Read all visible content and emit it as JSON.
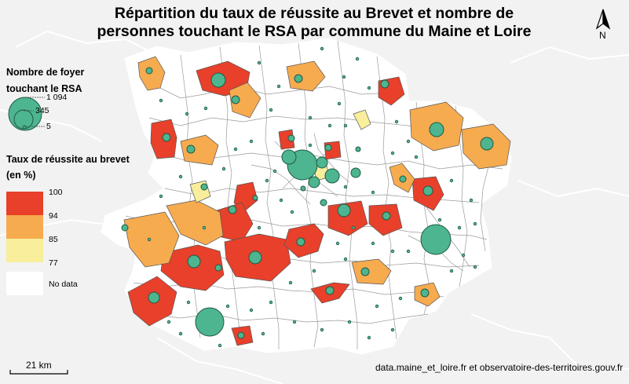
{
  "title": {
    "line1": "Répartition du taux de réussite au Brevet et nombre de",
    "line2": "personnes touchant le RSA par commune du Maine et Loire"
  },
  "legend_size": {
    "title_line1": "Nombre de foyer",
    "title_line2": "touchant le RSA",
    "values": [
      "1 094",
      "345",
      "5"
    ]
  },
  "legend_color": {
    "title_line1": "Taux de réussite au brevet",
    "title_line2": "(en %)",
    "breaks": [
      "100",
      "94",
      "85",
      "77"
    ],
    "no_data_label": "No data",
    "colors": {
      "high": "#e8402a",
      "mid": "#f6ab4f",
      "low": "#f8ee9c",
      "no_data": "#ffffff"
    }
  },
  "north_arrow": {
    "label": "N"
  },
  "scale_bar": {
    "label": "21 km"
  },
  "source": "data.maine_et_loire.fr et observatoire-des-territoires.gouv.fr",
  "colors": {
    "background": "#f2f2f2",
    "department_fill": "#ffffff",
    "commune_border": "#9a9a9a",
    "outer_border": "#ffffff",
    "symbol_fill": "#4db58f",
    "symbol_stroke": "#1e5a45"
  },
  "map_data": {
    "symbol_rsa_households": [
      {
        "rsa": 1094
      },
      {
        "rsa": 540
      },
      {
        "rsa": 345
      },
      {
        "rsa": 250
      },
      {
        "rsa": 5
      }
    ]
  }
}
